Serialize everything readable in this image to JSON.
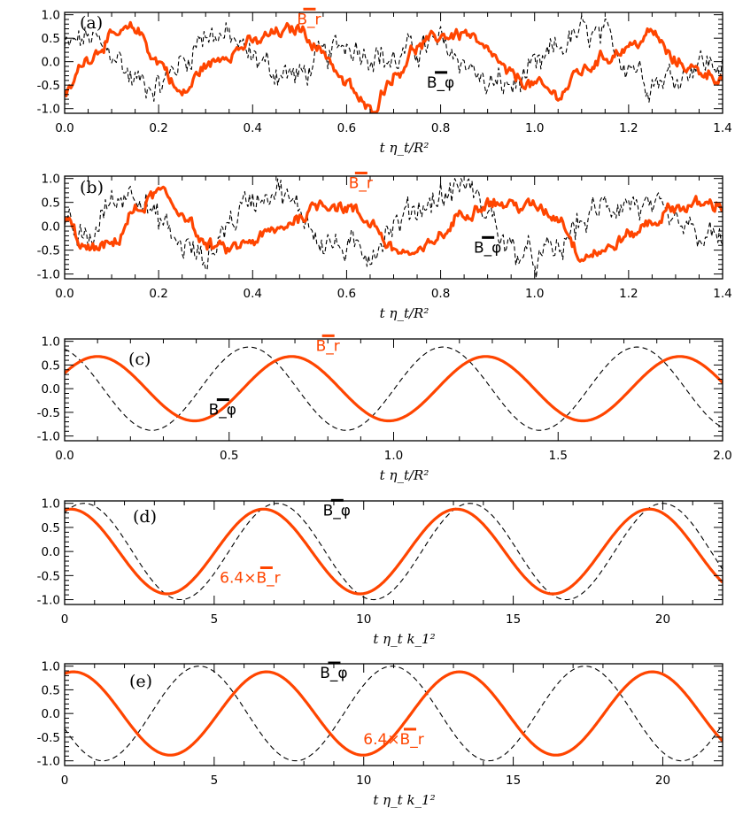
{
  "chart_data": [
    {
      "panel": "(a)",
      "type": "line",
      "kind": "noisy",
      "xlabel": "t η_t/R²",
      "xlim": [
        0,
        1.4
      ],
      "ylim": [
        -1.1,
        1.05
      ],
      "xticks": [
        "0.0",
        "0.2",
        "0.4",
        "0.6",
        "0.8",
        "1.0",
        "1.2",
        "1.4"
      ],
      "xtick_values": [
        0,
        0.2,
        0.4,
        0.6,
        0.8,
        1.0,
        1.2,
        1.4
      ],
      "yticks": [
        "-1.0",
        "-0.5",
        "0.0",
        "0.5",
        "1.0"
      ],
      "ytick_values": [
        -1,
        -0.5,
        0,
        0.5,
        1
      ],
      "series": [
        {
          "name": "B_r",
          "color": "#ff4500",
          "style": "solid",
          "label_text": "B_r",
          "x": [
            0,
            0.05,
            0.1,
            0.15,
            0.2,
            0.25,
            0.3,
            0.35,
            0.4,
            0.45,
            0.5,
            0.55,
            0.6,
            0.65,
            0.7,
            0.75,
            0.8,
            0.85,
            0.9,
            0.95,
            1.0,
            1.05,
            1.1,
            1.15,
            1.2,
            1.25,
            1.3,
            1.35,
            1.4
          ],
          "y": [
            -0.7,
            0.1,
            0.5,
            0.7,
            0.0,
            -0.7,
            -0.1,
            0.2,
            0.4,
            0.6,
            0.7,
            0.2,
            -0.5,
            -1.05,
            -0.3,
            0.3,
            0.55,
            0.6,
            0.2,
            -0.3,
            -0.5,
            -0.7,
            -0.2,
            0.1,
            0.3,
            0.6,
            0.0,
            -0.2,
            -0.35
          ]
        },
        {
          "name": "B_φ",
          "color": "#000000",
          "style": "dashed",
          "label_text": "B_φ",
          "x": [
            0,
            0.05,
            0.1,
            0.15,
            0.2,
            0.25,
            0.3,
            0.35,
            0.4,
            0.45,
            0.5,
            0.55,
            0.6,
            0.65,
            0.7,
            0.75,
            0.8,
            0.85,
            0.9,
            0.95,
            1.0,
            1.05,
            1.1,
            1.15,
            1.2,
            1.25,
            1.3,
            1.35,
            1.4
          ],
          "y": [
            0.3,
            0.5,
            0.2,
            -0.4,
            -0.5,
            0.0,
            0.6,
            0.5,
            0.1,
            -0.2,
            -0.3,
            0.1,
            0.4,
            0.2,
            0.0,
            0.3,
            0.4,
            0.0,
            -0.5,
            -0.5,
            -0.2,
            0.3,
            0.6,
            0.5,
            0.0,
            -0.4,
            -0.3,
            0.0,
            -0.1
          ]
        }
      ]
    },
    {
      "panel": "(b)",
      "type": "line",
      "kind": "noisy",
      "xlabel": "t η_t/R²",
      "xlim": [
        0,
        1.4
      ],
      "ylim": [
        -1.1,
        1.05
      ],
      "xticks": [
        "0.0",
        "0.2",
        "0.4",
        "0.6",
        "0.8",
        "1.0",
        "1.2",
        "1.4"
      ],
      "xtick_values": [
        0,
        0.2,
        0.4,
        0.6,
        0.8,
        1.0,
        1.2,
        1.4
      ],
      "yticks": [
        "-1.0",
        "-0.5",
        "0.0",
        "0.5",
        "1.0"
      ],
      "ytick_values": [
        -1,
        -0.5,
        0,
        0.5,
        1
      ],
      "series": [
        {
          "name": "B_r",
          "color": "#ff4500",
          "style": "solid",
          "label_text": "B_r",
          "x": [
            0,
            0.05,
            0.1,
            0.15,
            0.2,
            0.25,
            0.3,
            0.35,
            0.4,
            0.45,
            0.5,
            0.55,
            0.6,
            0.65,
            0.7,
            0.75,
            0.8,
            0.85,
            0.9,
            0.95,
            1.0,
            1.05,
            1.1,
            1.15,
            1.2,
            1.25,
            1.3,
            1.35,
            1.4
          ],
          "y": [
            0.1,
            -0.5,
            -0.4,
            0.3,
            0.7,
            0.3,
            -0.4,
            -0.5,
            -0.3,
            -0.1,
            0.2,
            0.5,
            0.4,
            0.1,
            -0.5,
            -0.6,
            -0.2,
            0.3,
            0.5,
            0.45,
            0.4,
            0.2,
            -0.6,
            -0.5,
            -0.2,
            0.1,
            0.4,
            0.45,
            0.45
          ]
        },
        {
          "name": "B_φ",
          "color": "#000000",
          "style": "dashed",
          "label_text": "B_φ",
          "x": [
            0,
            0.05,
            0.1,
            0.15,
            0.2,
            0.25,
            0.3,
            0.35,
            0.4,
            0.45,
            0.5,
            0.55,
            0.6,
            0.65,
            0.7,
            0.75,
            0.8,
            0.85,
            0.9,
            0.95,
            1.0,
            1.05,
            1.1,
            1.15,
            1.2,
            1.25,
            1.3,
            1.35,
            1.4
          ],
          "y": [
            -0.1,
            -0.3,
            0.5,
            0.8,
            0.1,
            -0.4,
            -0.7,
            0.1,
            0.6,
            0.8,
            0.3,
            -0.3,
            -0.5,
            -0.5,
            0.0,
            0.4,
            0.6,
            0.9,
            0.3,
            -0.5,
            -0.7,
            -0.5,
            0.1,
            0.4,
            0.5,
            0.3,
            0.0,
            -0.2,
            -0.3
          ]
        }
      ]
    },
    {
      "panel": "(c)",
      "type": "line",
      "kind": "sine",
      "xlabel": "t η_t/R²",
      "xlim": [
        0,
        2.0
      ],
      "ylim": [
        -1.1,
        1.05
      ],
      "xticks": [
        "0.0",
        "0.5",
        "1.0",
        "1.5",
        "2.0"
      ],
      "xtick_values": [
        0,
        0.5,
        1.0,
        1.5,
        2.0
      ],
      "yticks": [
        "-1.0",
        "-0.5",
        "0.0",
        "0.5",
        "1.0"
      ],
      "ytick_values": [
        -1,
        -0.5,
        0,
        0.5,
        1
      ],
      "series": [
        {
          "name": "B_r",
          "color": "#ff4500",
          "style": "solid",
          "label_text": "B_r",
          "amplitude": 0.68,
          "period": 0.59,
          "peak_at": 0.1
        },
        {
          "name": "B_φ",
          "color": "#000000",
          "style": "dashed",
          "label_text": "B_φ",
          "amplitude": 0.88,
          "period": 0.59,
          "peak_at": -0.03
        }
      ]
    },
    {
      "panel": "(d)",
      "type": "line",
      "kind": "sine",
      "xlabel": "t η_t k_1²",
      "xlim": [
        0,
        22
      ],
      "ylim": [
        -1.1,
        1.05
      ],
      "xticks": [
        "0",
        "5",
        "10",
        "15",
        "20"
      ],
      "xtick_values": [
        0,
        5,
        10,
        15,
        20
      ],
      "yticks": [
        "-1.0",
        "-0.5",
        "0.0",
        "0.5",
        "1.0"
      ],
      "ytick_values": [
        -1,
        -0.5,
        0,
        0.5,
        1
      ],
      "series": [
        {
          "name": "6.4×B_r",
          "color": "#ff4500",
          "style": "solid",
          "label_text": "6.4×B_r",
          "amplitude": 0.88,
          "period": 6.45,
          "peak_at": 0.2
        },
        {
          "name": "B_φ",
          "color": "#000000",
          "style": "dashed",
          "label_text": "B_φ",
          "amplitude": 1.0,
          "period": 6.45,
          "peak_at": 0.65
        }
      ]
    },
    {
      "panel": "(e)",
      "type": "line",
      "kind": "sine",
      "xlabel": "t η_t k_1²",
      "xlim": [
        0,
        22
      ],
      "ylim": [
        -1.1,
        1.05
      ],
      "xticks": [
        "0",
        "5",
        "10",
        "15",
        "20"
      ],
      "xtick_values": [
        0,
        5,
        10,
        15,
        20
      ],
      "yticks": [
        "-1.0",
        "-0.5",
        "0.0",
        "0.5",
        "1.0"
      ],
      "ytick_values": [
        -1,
        -0.5,
        0,
        0.5,
        1
      ],
      "series": [
        {
          "name": "6.4×B_r",
          "color": "#ff4500",
          "style": "solid",
          "label_text": "6.4×B_r",
          "amplitude": 0.88,
          "period": 6.45,
          "peak_at": 0.3
        },
        {
          "name": "B_φ",
          "color": "#000000",
          "style": "dashed",
          "label_text": "B_φ",
          "amplitude": 1.0,
          "period": 6.45,
          "peak_at": 4.5
        }
      ]
    }
  ]
}
